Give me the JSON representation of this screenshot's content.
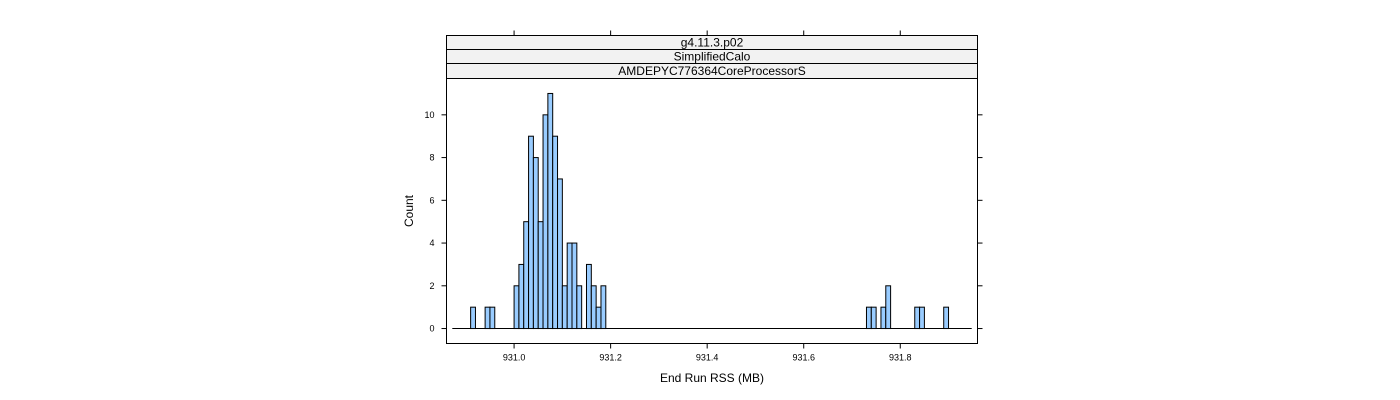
{
  "chart_data": {
    "type": "bar",
    "strips": [
      "g4.11.3.p02",
      "SimplifiedCalo",
      "AMDEPYC776364CoreProcessorS"
    ],
    "xlabel": "End Run RSS (MB)",
    "ylabel": "Count",
    "xlim": [
      930.86,
      931.96
    ],
    "ylim": [
      -0.7,
      11.7
    ],
    "x_ticks": [
      931.0,
      931.2,
      931.4,
      931.6,
      931.8
    ],
    "x_tick_labels": [
      "931.0",
      "931.2",
      "931.4",
      "931.6",
      "931.8"
    ],
    "y_ticks": [
      0,
      2,
      4,
      6,
      8,
      10
    ],
    "y_tick_labels": [
      "0",
      "2",
      "4",
      "6",
      "8",
      "10"
    ],
    "bin_width": 0.01,
    "bins": [
      {
        "x": 930.91,
        "count": 1
      },
      {
        "x": 930.94,
        "count": 1
      },
      {
        "x": 930.95,
        "count": 1
      },
      {
        "x": 931.0,
        "count": 2
      },
      {
        "x": 931.01,
        "count": 3
      },
      {
        "x": 931.02,
        "count": 5
      },
      {
        "x": 931.03,
        "count": 9
      },
      {
        "x": 931.04,
        "count": 8
      },
      {
        "x": 931.05,
        "count": 5
      },
      {
        "x": 931.06,
        "count": 10
      },
      {
        "x": 931.07,
        "count": 11
      },
      {
        "x": 931.08,
        "count": 9
      },
      {
        "x": 931.09,
        "count": 7
      },
      {
        "x": 931.1,
        "count": 2
      },
      {
        "x": 931.11,
        "count": 4
      },
      {
        "x": 931.12,
        "count": 4
      },
      {
        "x": 931.13,
        "count": 2
      },
      {
        "x": 931.15,
        "count": 3
      },
      {
        "x": 931.16,
        "count": 2
      },
      {
        "x": 931.17,
        "count": 1
      },
      {
        "x": 931.18,
        "count": 2
      },
      {
        "x": 931.73,
        "count": 1
      },
      {
        "x": 931.74,
        "count": 1
      },
      {
        "x": 931.76,
        "count": 1
      },
      {
        "x": 931.77,
        "count": 2
      },
      {
        "x": 931.83,
        "count": 1
      },
      {
        "x": 931.84,
        "count": 1
      },
      {
        "x": 931.89,
        "count": 1
      }
    ],
    "baseline_range": [
      930.86,
      931.96
    ],
    "colors": {
      "bar_fill": "#99ccff",
      "bar_stroke": "#000000",
      "strip_fill": "#f2f2f2"
    }
  }
}
